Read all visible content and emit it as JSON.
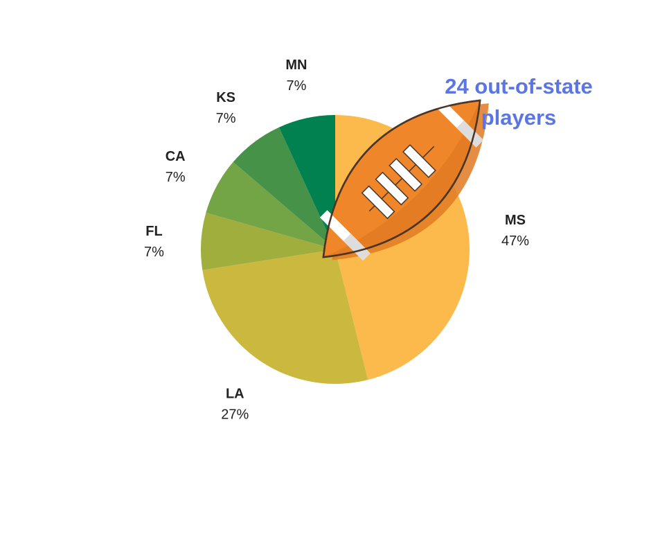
{
  "chart_data": {
    "type": "pie",
    "categories": [
      "MS",
      "LA",
      "FL",
      "CA",
      "KS",
      "MN"
    ],
    "values": [
      47,
      27,
      7,
      7,
      7,
      7
    ],
    "value_labels": [
      "47%",
      "27%",
      "7%",
      "7%",
      "7%",
      "7%"
    ],
    "colors": [
      "#FDBA4C",
      "#CBB83E",
      "#9FAE3D",
      "#73A445",
      "#469249",
      "#00814F"
    ],
    "start_angle": "12 o'clock",
    "direction": "clockwise",
    "title": "",
    "legend": "none"
  },
  "annotation": {
    "line1": "24 out-of-state",
    "line2": "players",
    "color": "#5B76E2"
  },
  "decoration": {
    "icon": "american-football-icon",
    "ball_color": "#EF8629",
    "outline_color": "#4a3526",
    "stripe_color": "#ffffff"
  }
}
